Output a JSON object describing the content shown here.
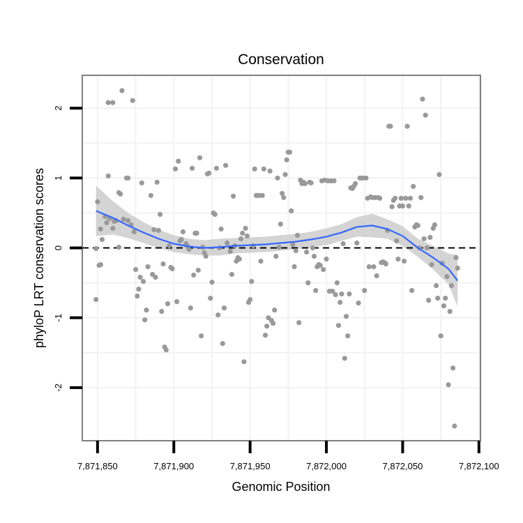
{
  "chart_data": {
    "type": "scatter",
    "title": "Conservation",
    "xlabel": "Genomic Position",
    "ylabel": "phyloP LRT conservation scores",
    "xlim": [
      7871840,
      7872101
    ],
    "ylim": [
      -2.76,
      2.47
    ],
    "x_ticks": [
      7871850,
      7871900,
      7871950,
      7872000,
      7872050,
      7872100
    ],
    "x_tick_labels": [
      "7,871,850",
      "7,871,900",
      "7,871,950",
      "7,872,000",
      "7,872,050",
      "7,872,100"
    ],
    "y_ticks": [
      -2,
      -1,
      0,
      1,
      2
    ],
    "y_tick_labels": [
      "-2",
      "-1",
      "0",
      "1",
      "2"
    ],
    "grid": true,
    "reference_line": {
      "y": 0,
      "style": "dashed"
    },
    "colors": {
      "points": "#999999",
      "smooth_line": "#3366ff",
      "confidence_band": "#cccccc",
      "grid": "#f2f2f2",
      "frame": "#7f7f7f"
    },
    "points": [
      [
        7871849,
        -0.01
      ],
      [
        7871849,
        -0.74
      ],
      [
        7871850,
        0.66
      ],
      [
        7871851,
        -0.25
      ],
      [
        7871852,
        0.27
      ],
      [
        7871852,
        -0.24
      ],
      [
        7871853,
        0.12
      ],
      [
        7871855,
        0.45
      ],
      [
        7871856,
        0.36
      ],
      [
        7871857,
        1.03
      ],
      [
        7871857,
        2.08
      ],
      [
        7871858,
        0.42
      ],
      [
        7871860,
        2.08
      ],
      [
        7871860,
        0.28
      ],
      [
        7871861,
        0.38
      ],
      [
        7871862,
        0.39
      ],
      [
        7871864,
        0.79
      ],
      [
        7871864,
        0.01
      ],
      [
        7871865,
        0.77
      ],
      [
        7871866,
        2.25
      ],
      [
        7871867,
        0.41
      ],
      [
        7871869,
        1.0
      ],
      [
        7871870,
        0.39
      ],
      [
        7871870,
        1.0
      ],
      [
        7871872,
        0.33
      ],
      [
        7871873,
        2.11
      ],
      [
        7871874,
        0.23
      ],
      [
        7871875,
        -0.31
      ],
      [
        7871876,
        -0.69
      ],
      [
        7871877,
        -0.59
      ],
      [
        7871878,
        -0.42
      ],
      [
        7871879,
        0.93
      ],
      [
        7871880,
        -0.48
      ],
      [
        7871881,
        -1.03
      ],
      [
        7871882,
        -0.89
      ],
      [
        7871883,
        -0.27
      ],
      [
        7871885,
        0.75
      ],
      [
        7871886,
        -0.38
      ],
      [
        7871887,
        0.26
      ],
      [
        7871888,
        -0.42
      ],
      [
        7871889,
        0.94
      ],
      [
        7871890,
        0.25
      ],
      [
        7871891,
        0.48
      ],
      [
        7871892,
        -0.91
      ],
      [
        7871893,
        -0.23
      ],
      [
        7871894,
        -1.42
      ],
      [
        7871895,
        -1.46
      ],
      [
        7871896,
        -0.8
      ],
      [
        7871897,
        0.03
      ],
      [
        7871898,
        -0.28
      ],
      [
        7871899,
        -0.3
      ],
      [
        7871901,
        1.13
      ],
      [
        7871902,
        -0.77
      ],
      [
        7871903,
        1.24
      ],
      [
        7871904,
        0.1
      ],
      [
        7871905,
        0.12
      ],
      [
        7871906,
        0.23
      ],
      [
        7871908,
        0.06
      ],
      [
        7871909,
        0.02
      ],
      [
        7871910,
        -0.02
      ],
      [
        7871911,
        -0.86
      ],
      [
        7871912,
        1.14
      ],
      [
        7871913,
        -0.39
      ],
      [
        7871914,
        0.21
      ],
      [
        7871915,
        0.21
      ],
      [
        7871916,
        -0.32
      ],
      [
        7871917,
        1.29
      ],
      [
        7871918,
        -1.26
      ],
      [
        7871919,
        0.01
      ],
      [
        7871920,
        -0.07
      ],
      [
        7871921,
        -0.12
      ],
      [
        7871922,
        1.06
      ],
      [
        7871923,
        1.07
      ],
      [
        7871924,
        -0.72
      ],
      [
        7871925,
        -0.49
      ],
      [
        7871926,
        0.5
      ],
      [
        7871927,
        0.48
      ],
      [
        7871928,
        1.14
      ],
      [
        7871929,
        -0.96
      ],
      [
        7871930,
        0.0
      ],
      [
        7871931,
        0.27
      ],
      [
        7871932,
        -1.37
      ],
      [
        7871933,
        -0.86
      ],
      [
        7871934,
        1.18
      ],
      [
        7871935,
        0.07
      ],
      [
        7871937,
        -0.05
      ],
      [
        7871938,
        -0.38
      ],
      [
        7871939,
        0.74
      ],
      [
        7871940,
        0.03
      ],
      [
        7871941,
        -0.19
      ],
      [
        7871942,
        -0.14
      ],
      [
        7871943,
        -0.16
      ],
      [
        7871944,
        0.13
      ],
      [
        7871945,
        0.21
      ],
      [
        7871946,
        -1.63
      ],
      [
        7871947,
        0.28
      ],
      [
        7871948,
        0.17
      ],
      [
        7871949,
        -0.78
      ],
      [
        7871950,
        -0.74
      ],
      [
        7871951,
        -0.48
      ],
      [
        7871952,
        0.03
      ],
      [
        7871953,
        1.13
      ],
      [
        7871954,
        0.75
      ],
      [
        7871955,
        0.75
      ],
      [
        7871956,
        0.75
      ],
      [
        7871957,
        -0.19
      ],
      [
        7871958,
        0.75
      ],
      [
        7871959,
        1.13
      ],
      [
        7871960,
        -1.25
      ],
      [
        7871961,
        -1.12
      ],
      [
        7871962,
        -1.0
      ],
      [
        7871963,
        1.1
      ],
      [
        7871964,
        -1.04
      ],
      [
        7871965,
        -1.08
      ],
      [
        7871966,
        -0.89
      ],
      [
        7871967,
        -0.12
      ],
      [
        7871968,
        1.0
      ],
      [
        7871969,
        0.01
      ],
      [
        7871970,
        0.34
      ],
      [
        7871971,
        0.78
      ],
      [
        7871972,
        0.72
      ],
      [
        7871973,
        1.05
      ],
      [
        7871974,
        1.26
      ],
      [
        7871975,
        1.37
      ],
      [
        7871976,
        1.37
      ],
      [
        7871977,
        0.53
      ],
      [
        7871978,
        0.05
      ],
      [
        7871979,
        -0.27
      ],
      [
        7871980,
        -0.04
      ],
      [
        7871981,
        0.18
      ],
      [
        7871982,
        -1.07
      ],
      [
        7871983,
        0.97
      ],
      [
        7871984,
        0.92
      ],
      [
        7871985,
        0.94
      ],
      [
        7871986,
        0.92
      ],
      [
        7871987,
        -0.06
      ],
      [
        7871988,
        -0.5
      ],
      [
        7871989,
        0.94
      ],
      [
        7871990,
        0.93
      ],
      [
        7871991,
        0.0
      ],
      [
        7871992,
        -0.12
      ],
      [
        7871993,
        -0.61
      ],
      [
        7871994,
        -0.27
      ],
      [
        7871995,
        -0.24
      ],
      [
        7871996,
        -0.25
      ],
      [
        7871997,
        0.96
      ],
      [
        7871998,
        -0.31
      ],
      [
        7871999,
        0.97
      ],
      [
        7872000,
        -0.16
      ],
      [
        7872001,
        0.96
      ],
      [
        7872002,
        -0.62
      ],
      [
        7872003,
        0.96
      ],
      [
        7872004,
        -0.62
      ],
      [
        7872005,
        0.96
      ],
      [
        7872006,
        -0.67
      ],
      [
        7872007,
        -0.5
      ],
      [
        7872008,
        -1.11
      ],
      [
        7872009,
        -0.78
      ],
      [
        7872010,
        -0.66
      ],
      [
        7872011,
        0.06
      ],
      [
        7872012,
        -1.58
      ],
      [
        7872013,
        -0.98
      ],
      [
        7872014,
        -1.26
      ],
      [
        7872015,
        -0.66
      ],
      [
        7872016,
        0.86
      ],
      [
        7872017,
        0.85
      ],
      [
        7872018,
        0.88
      ],
      [
        7872019,
        0.92
      ],
      [
        7872020,
        0.07
      ],
      [
        7872021,
        -0.79
      ],
      [
        7872022,
        1.0
      ],
      [
        7872023,
        1.0
      ],
      [
        7872024,
        1.0
      ],
      [
        7872025,
        -0.61
      ],
      [
        7872026,
        1.0
      ],
      [
        7872027,
        0.71
      ],
      [
        7872028,
        -0.27
      ],
      [
        7872029,
        0.73
      ],
      [
        7872030,
        0.72
      ],
      [
        7872031,
        -0.27
      ],
      [
        7872032,
        0.72
      ],
      [
        7872033,
        -0.4
      ],
      [
        7872034,
        0.72
      ],
      [
        7872035,
        0.71
      ],
      [
        7872036,
        -0.21
      ],
      [
        7872037,
        -0.2
      ],
      [
        7872038,
        -0.21
      ],
      [
        7872039,
        -0.23
      ],
      [
        7872040,
        0.25
      ],
      [
        7872041,
        1.74
      ],
      [
        7872042,
        1.74
      ],
      [
        7872043,
        0.59
      ],
      [
        7872044,
        0.68
      ],
      [
        7872045,
        0.71
      ],
      [
        7872046,
        0.1
      ],
      [
        7872047,
        -0.16
      ],
      [
        7872048,
        0.6
      ],
      [
        7872049,
        0.71
      ],
      [
        7872050,
        0.6
      ],
      [
        7872051,
        -0.19
      ],
      [
        7872052,
        0.71
      ],
      [
        7872053,
        1.74
      ],
      [
        7872054,
        0.6
      ],
      [
        7872055,
        0.71
      ],
      [
        7872056,
        -0.61
      ],
      [
        7872057,
        0.88
      ],
      [
        7872058,
        0.3
      ],
      [
        7872059,
        0.33
      ],
      [
        7872060,
        0.32
      ],
      [
        7872061,
        0.0
      ],
      [
        7872062,
        0.72
      ],
      [
        7872063,
        2.13
      ],
      [
        7872064,
        0.13
      ],
      [
        7872065,
        1.9
      ],
      [
        7872066,
        0.0
      ],
      [
        7872067,
        -0.75
      ],
      [
        7872068,
        0.15
      ],
      [
        7872069,
        -0.24
      ],
      [
        7872070,
        0.28
      ],
      [
        7872071,
        0.33
      ],
      [
        7872072,
        -0.54
      ],
      [
        7872073,
        -0.72
      ],
      [
        7872074,
        1.05
      ],
      [
        7872075,
        -1.26
      ],
      [
        7872076,
        -0.22
      ],
      [
        7872077,
        -0.83
      ],
      [
        7872078,
        -0.72
      ],
      [
        7872079,
        -0.41
      ],
      [
        7872080,
        -1.96
      ],
      [
        7872081,
        -0.91
      ],
      [
        7872082,
        -0.54
      ],
      [
        7872083,
        -1.72
      ],
      [
        7872084,
        -2.55
      ],
      [
        7872085,
        -0.14
      ],
      [
        7872086,
        -0.29
      ]
    ],
    "smooth_fit": {
      "method": "loess",
      "x": [
        7871849,
        7871860,
        7871870,
        7871880,
        7871890,
        7871900,
        7871910,
        7871920,
        7871930,
        7871940,
        7871950,
        7871960,
        7871970,
        7871980,
        7871990,
        7872000,
        7872010,
        7872020,
        7872030,
        7872040,
        7872050,
        7872060,
        7872070,
        7872080,
        7872086
      ],
      "y": [
        0.53,
        0.43,
        0.32,
        0.22,
        0.13,
        0.06,
        0.02,
        0.0,
        0.01,
        0.03,
        0.04,
        0.05,
        0.07,
        0.09,
        0.12,
        0.16,
        0.22,
        0.3,
        0.32,
        0.27,
        0.17,
        0.0,
        -0.14,
        -0.3,
        -0.47
      ],
      "ci_upper": [
        0.89,
        0.67,
        0.5,
        0.37,
        0.26,
        0.18,
        0.13,
        0.11,
        0.13,
        0.14,
        0.15,
        0.16,
        0.18,
        0.2,
        0.23,
        0.28,
        0.34,
        0.44,
        0.49,
        0.41,
        0.31,
        0.13,
        0.03,
        -0.08,
        -0.1
      ],
      "ci_lower": [
        0.17,
        0.19,
        0.14,
        0.07,
        0.0,
        -0.06,
        -0.09,
        -0.11,
        -0.11,
        -0.08,
        -0.07,
        -0.06,
        -0.04,
        -0.02,
        0.01,
        0.04,
        0.1,
        0.16,
        0.15,
        0.13,
        0.03,
        -0.13,
        -0.31,
        -0.52,
        -0.84
      ]
    }
  }
}
